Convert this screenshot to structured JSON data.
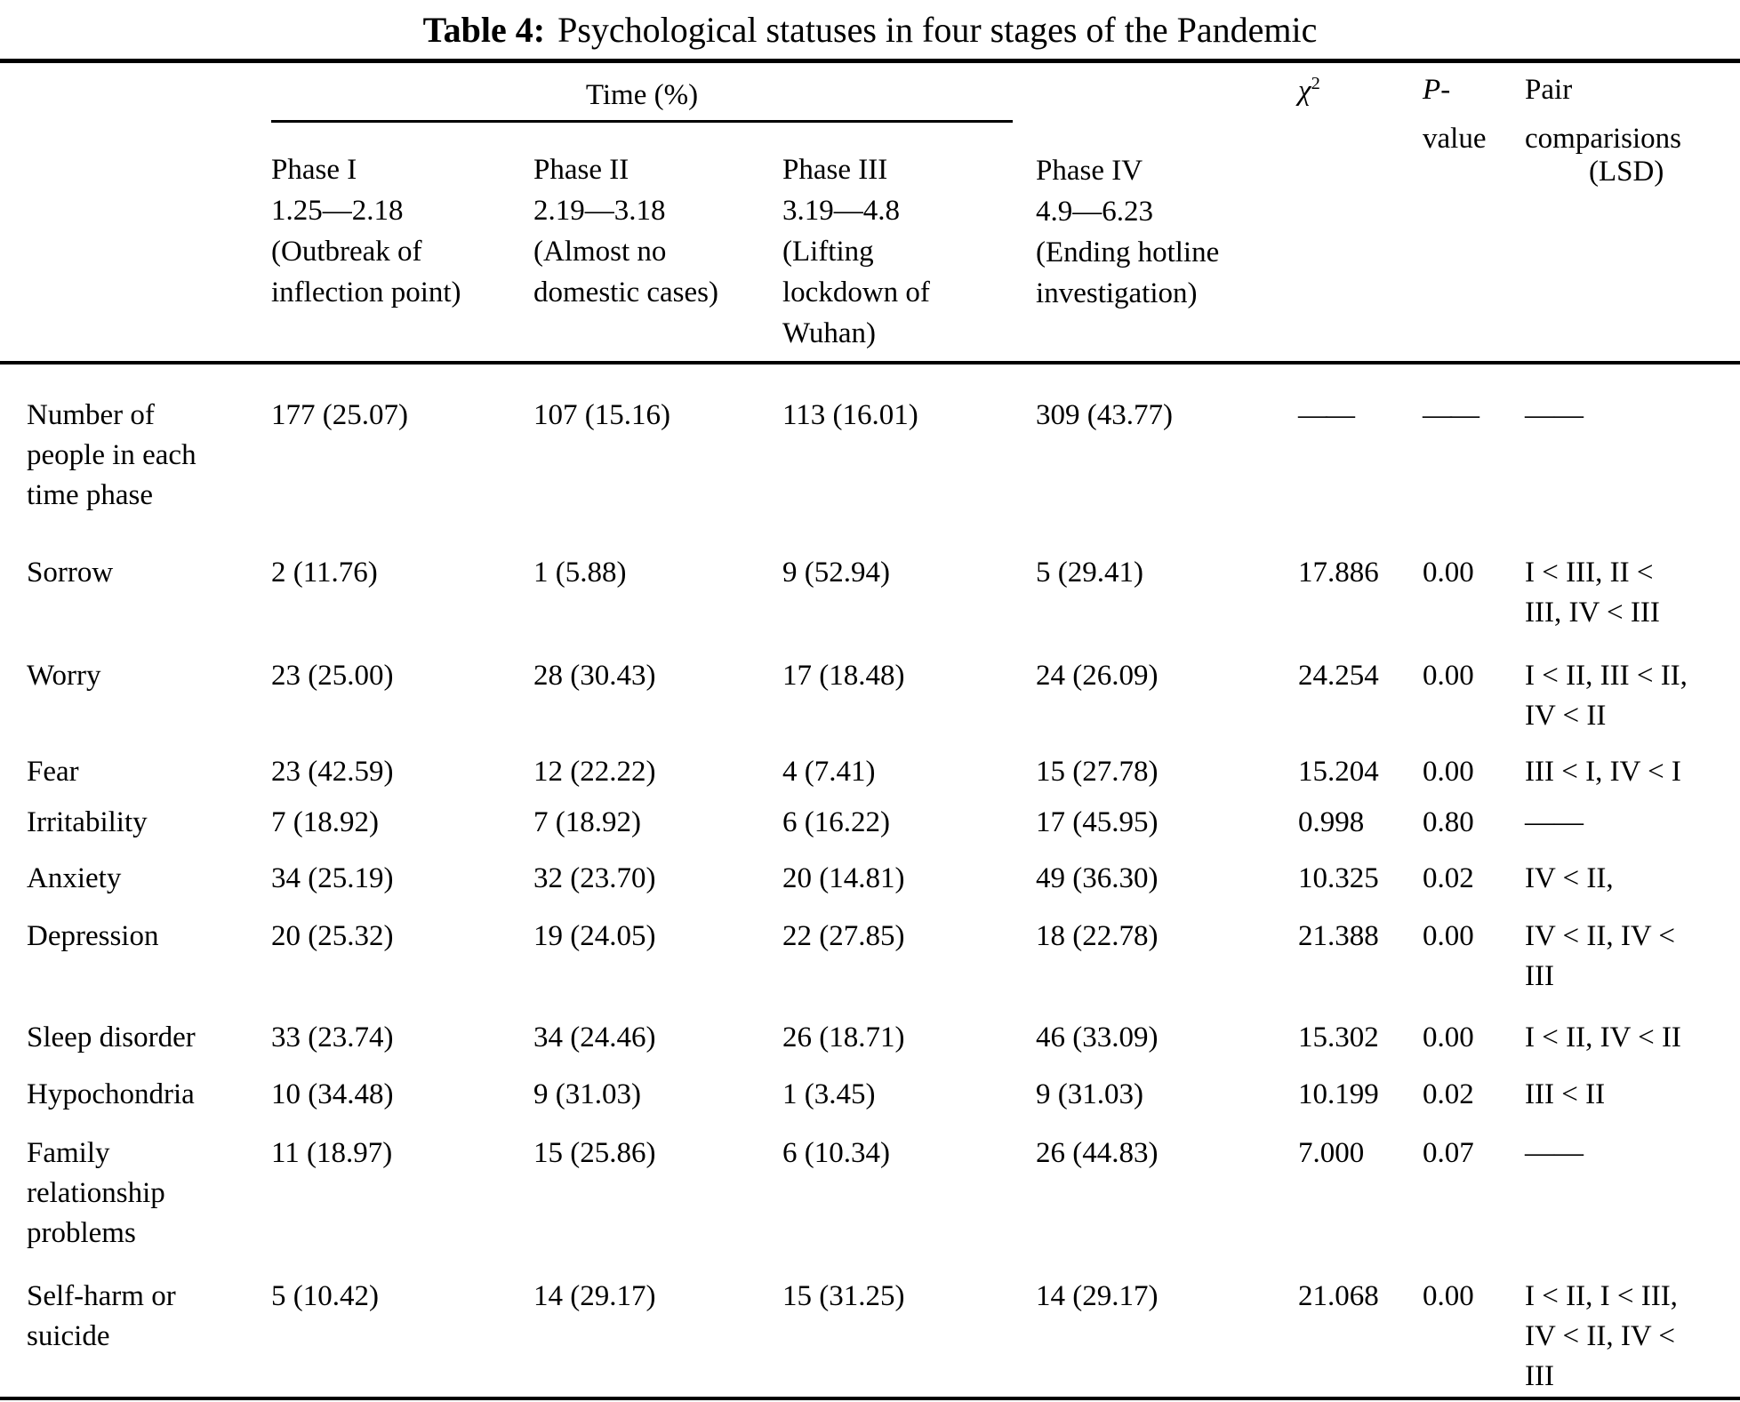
{
  "title": {
    "label": "Table 4:",
    "text": "Psychological statuses in four stages of the Pandemic"
  },
  "header": {
    "time_group": "Time (%)",
    "chi": {
      "base": "χ",
      "sup": "2"
    },
    "p_value": [
      "P-",
      "value"
    ],
    "pair": [
      "Pair",
      "comparisions",
      "(LSD)"
    ],
    "phases": [
      {
        "lines": [
          "Phase I",
          "1.25—2.18",
          "(Outbreak of",
          "inflection point)"
        ]
      },
      {
        "lines": [
          "Phase II",
          "2.19—3.18",
          "(Almost no",
          "domestic cases)"
        ]
      },
      {
        "lines": [
          "Phase III",
          "3.19—4.8",
          "(Lifting",
          "lockdown of",
          "Wuhan)"
        ]
      },
      {
        "lines": [
          "Phase IV",
          "4.9—6.23",
          "(Ending hotline",
          "investigation)"
        ]
      }
    ]
  },
  "rows": [
    {
      "label_lines": [
        "Number of",
        "people in each",
        "time phase"
      ],
      "values": [
        "177 (25.07)",
        "107 (15.16)",
        "113 (16.01)",
        "309 (43.77)",
        "——",
        "——"
      ],
      "pair_lines": [
        "——"
      ]
    },
    {
      "label_lines": [
        "Sorrow"
      ],
      "values": [
        "2 (11.76)",
        "1 (5.88)",
        "9 (52.94)",
        "5 (29.41)",
        "17.886",
        "0.00"
      ],
      "pair_lines": [
        "I < III, II <",
        "III, IV < III"
      ]
    },
    {
      "label_lines": [
        "Worry"
      ],
      "values": [
        "23 (25.00)",
        "28 (30.43)",
        "17 (18.48)",
        "24 (26.09)",
        "24.254",
        "0.00"
      ],
      "pair_lines": [
        "I < II, III < II,",
        "IV < II"
      ]
    },
    {
      "label_lines": [
        "Fear"
      ],
      "values": [
        "23 (42.59)",
        "12 (22.22)",
        "4 (7.41)",
        "15 (27.78)",
        "15.204",
        "0.00"
      ],
      "pair_lines": [
        "III < I, IV < I"
      ]
    },
    {
      "label_lines": [
        "Irritability"
      ],
      "values": [
        "7 (18.92)",
        "7 (18.92)",
        "6 (16.22)",
        "17 (45.95)",
        "0.998",
        "0.80"
      ],
      "pair_lines": [
        "——"
      ]
    },
    {
      "label_lines": [
        "Anxiety"
      ],
      "values": [
        "34 (25.19)",
        "32 (23.70)",
        "20 (14.81)",
        "49 (36.30)",
        "10.325",
        "0.02"
      ],
      "pair_lines": [
        "IV < II,"
      ]
    },
    {
      "label_lines": [
        "Depression"
      ],
      "values": [
        "20 (25.32)",
        "19 (24.05)",
        "22 (27.85)",
        "18 (22.78)",
        "21.388",
        "0.00"
      ],
      "pair_lines": [
        "IV < II, IV <",
        "III"
      ]
    },
    {
      "label_lines": [
        "Sleep disorder"
      ],
      "values": [
        "33 (23.74)",
        "34 (24.46)",
        "26 (18.71)",
        "46 (33.09)",
        "15.302",
        "0.00"
      ],
      "pair_lines": [
        "I < II, IV < II"
      ]
    },
    {
      "label_lines": [
        "Hypochondria"
      ],
      "values": [
        "10 (34.48)",
        "9 (31.03)",
        "1 (3.45)",
        "9 (31.03)",
        "10.199",
        "0.02"
      ],
      "pair_lines": [
        "III < II"
      ]
    },
    {
      "label_lines": [
        "Family",
        "relationship",
        "problems"
      ],
      "values": [
        "11 (18.97)",
        "15 (25.86)",
        "6 (10.34)",
        "26 (44.83)",
        "7.000",
        "0.07"
      ],
      "pair_lines": [
        "——"
      ]
    },
    {
      "label_lines": [
        "Self-harm or",
        "suicide"
      ],
      "values": [
        "5 (10.42)",
        "14 (29.17)",
        "15 (31.25)",
        "14 (29.17)",
        "21.068",
        "0.00"
      ],
      "pair_lines": [
        "I < II, I < III,",
        "IV < II, IV <",
        "III"
      ]
    }
  ]
}
